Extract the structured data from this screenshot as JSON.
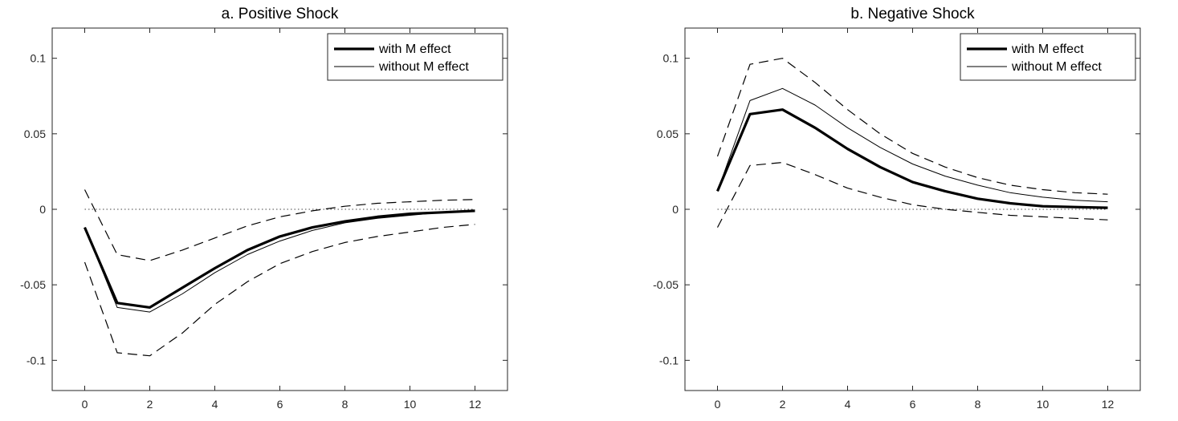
{
  "chart_data": [
    {
      "type": "line",
      "title": "a. Positive Shock",
      "xlabel": "",
      "ylabel": "",
      "xlim": [
        -1,
        13
      ],
      "ylim": [
        -0.12,
        0.12
      ],
      "xticks": [
        0,
        2,
        4,
        6,
        8,
        10,
        12
      ],
      "xtick_labels": [
        "0",
        "2",
        "4",
        "6",
        "8",
        "10",
        "12"
      ],
      "yticks": [
        -0.1,
        -0.05,
        0,
        0.05,
        0.1
      ],
      "ytick_labels": [
        "-0.1",
        "-0.05",
        "0",
        "0.05",
        "0.1"
      ],
      "grid": false,
      "legend_position": "top-right",
      "x": [
        0,
        1,
        2,
        3,
        4,
        5,
        6,
        7,
        8,
        9,
        10,
        11,
        12
      ],
      "series": [
        {
          "name": "with M effect",
          "style": "thick",
          "values": [
            -0.012,
            -0.062,
            -0.065,
            -0.052,
            -0.039,
            -0.027,
            -0.018,
            -0.012,
            -0.008,
            -0.005,
            -0.003,
            -0.002,
            -0.001
          ]
        },
        {
          "name": "without M effect",
          "style": "thin",
          "values": [
            -0.012,
            -0.065,
            -0.068,
            -0.056,
            -0.042,
            -0.03,
            -0.021,
            -0.014,
            -0.009,
            -0.006,
            -0.004,
            -0.002,
            -0.001
          ]
        },
        {
          "style": "dashed",
          "values": [
            0.013,
            -0.03,
            -0.034,
            -0.027,
            -0.019,
            -0.011,
            -0.005,
            -0.001,
            0.002,
            0.004,
            0.005,
            0.006,
            0.0065
          ]
        },
        {
          "style": "dashed",
          "values": [
            -0.035,
            -0.095,
            -0.097,
            -0.082,
            -0.063,
            -0.048,
            -0.036,
            -0.028,
            -0.022,
            -0.018,
            -0.015,
            -0.012,
            -0.01
          ]
        }
      ]
    },
    {
      "type": "line",
      "title": "b. Negative Shock",
      "xlabel": "",
      "ylabel": "",
      "xlim": [
        -1,
        13
      ],
      "ylim": [
        -0.12,
        0.12
      ],
      "xticks": [
        0,
        2,
        4,
        6,
        8,
        10,
        12
      ],
      "xtick_labels": [
        "0",
        "2",
        "4",
        "6",
        "8",
        "10",
        "12"
      ],
      "yticks": [
        -0.1,
        -0.05,
        0,
        0.05,
        0.1
      ],
      "ytick_labels": [
        "-0.1",
        "-0.05",
        "0",
        "0.05",
        "0.1"
      ],
      "grid": false,
      "legend_position": "top-right",
      "x": [
        0,
        1,
        2,
        3,
        4,
        5,
        6,
        7,
        8,
        9,
        10,
        11,
        12
      ],
      "series": [
        {
          "name": "with M effect",
          "style": "thick",
          "values": [
            0.012,
            0.063,
            0.066,
            0.054,
            0.04,
            0.028,
            0.018,
            0.012,
            0.007,
            0.004,
            0.002,
            0.0015,
            0.001
          ]
        },
        {
          "name": "without M effect",
          "style": "thin",
          "values": [
            0.012,
            0.072,
            0.08,
            0.069,
            0.054,
            0.041,
            0.03,
            0.022,
            0.016,
            0.011,
            0.008,
            0.006,
            0.005
          ]
        },
        {
          "style": "dashed",
          "values": [
            0.035,
            0.096,
            0.1,
            0.084,
            0.066,
            0.05,
            0.037,
            0.028,
            0.021,
            0.016,
            0.013,
            0.011,
            0.01
          ]
        },
        {
          "style": "dashed",
          "values": [
            -0.012,
            0.029,
            0.031,
            0.023,
            0.014,
            0.008,
            0.003,
            0.0,
            -0.002,
            -0.004,
            -0.005,
            -0.006,
            -0.007
          ]
        }
      ]
    }
  ]
}
